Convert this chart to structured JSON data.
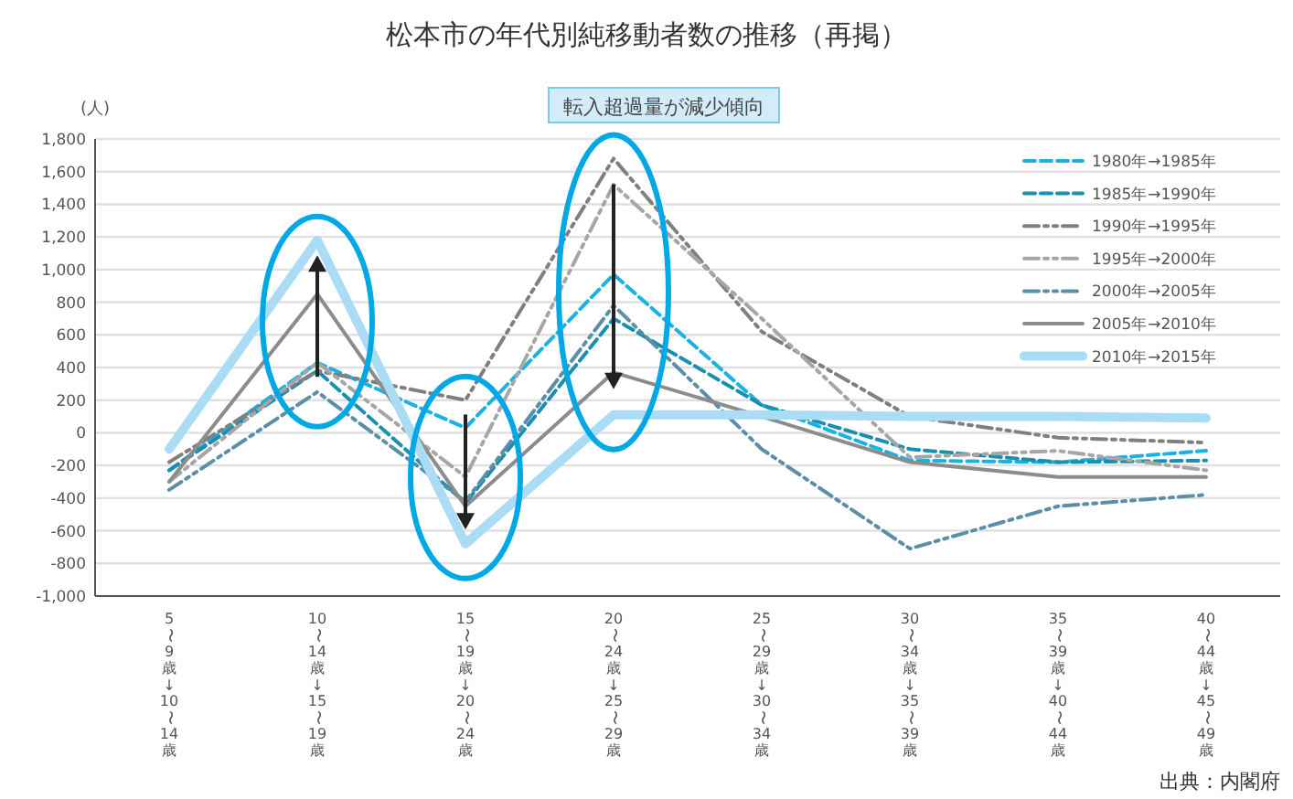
{
  "chart_data": {
    "type": "line",
    "title": "松本市の年代別純移動者数の推移（再掲）",
    "ylabel": "(人)",
    "annotations": [
      "転入超過量が減少傾向",
      "出典：内閣府"
    ],
    "categories": [
      "5〜9歳→10〜14歳",
      "10〜14歳→15〜19歳",
      "15〜19歳→20〜24歳",
      "20〜24歳→25〜29歳",
      "25〜29歳→30〜34歳",
      "30〜34歳→35〜39歳",
      "35〜39歳→40〜44歳",
      "40〜44歳→45〜49歳"
    ],
    "ylim": [
      -1000,
      1800
    ],
    "yticks": [
      {
        "value": -1000,
        "label": "-1,000"
      },
      -800,
      -600,
      -400,
      -200,
      0,
      200,
      400,
      600,
      800,
      {
        "value": 1000,
        "label": "1,000"
      },
      {
        "value": 1200,
        "label": "1,200"
      },
      {
        "value": 1400,
        "label": "1,400"
      },
      {
        "value": 1600,
        "label": "1,600"
      },
      {
        "value": 1800,
        "label": "1,800"
      }
    ],
    "grid": "y",
    "legend": "top right",
    "marker": "none",
    "series": [
      {
        "name": "1980年→1985年",
        "color": "#1ab2e2",
        "line_style": "dashed",
        "values": [
          -230,
          430,
          30,
          970,
          170,
          -170,
          -180,
          -110
        ]
      },
      {
        "name": "1985年→1990年",
        "color": "#1a8fb0",
        "line_style": "dashed",
        "values": [
          -230,
          380,
          -430,
          700,
          170,
          -100,
          -180,
          -170
        ]
      },
      {
        "name": "1990年→1995年",
        "color": "#7f7f7f",
        "line_style": "dotted",
        "values": [
          -180,
          380,
          200,
          1680,
          620,
          100,
          -30,
          -60
        ]
      },
      {
        "name": "1995年→2000年",
        "color": "#a6a6a6",
        "line_style": "dotted",
        "values": [
          -300,
          430,
          -270,
          1520,
          700,
          -150,
          -110,
          -230
        ]
      },
      {
        "name": "2000年→2005年",
        "color": "#5b8fa8",
        "line_style": "dotted",
        "values": [
          -350,
          250,
          -420,
          780,
          -100,
          -710,
          -450,
          -380
        ]
      },
      {
        "name": "2005年→2010年",
        "color": "#8c8c8c",
        "line_style": "solid",
        "values": [
          -300,
          850,
          -450,
          370,
          100,
          -180,
          -270,
          -270
        ]
      },
      {
        "name": "2010年→2015年",
        "color": "#aadcf6",
        "line_style": "solid",
        "values": [
          -100,
          1180,
          -680,
          110,
          110,
          100,
          100,
          90
        ]
      }
    ]
  }
}
